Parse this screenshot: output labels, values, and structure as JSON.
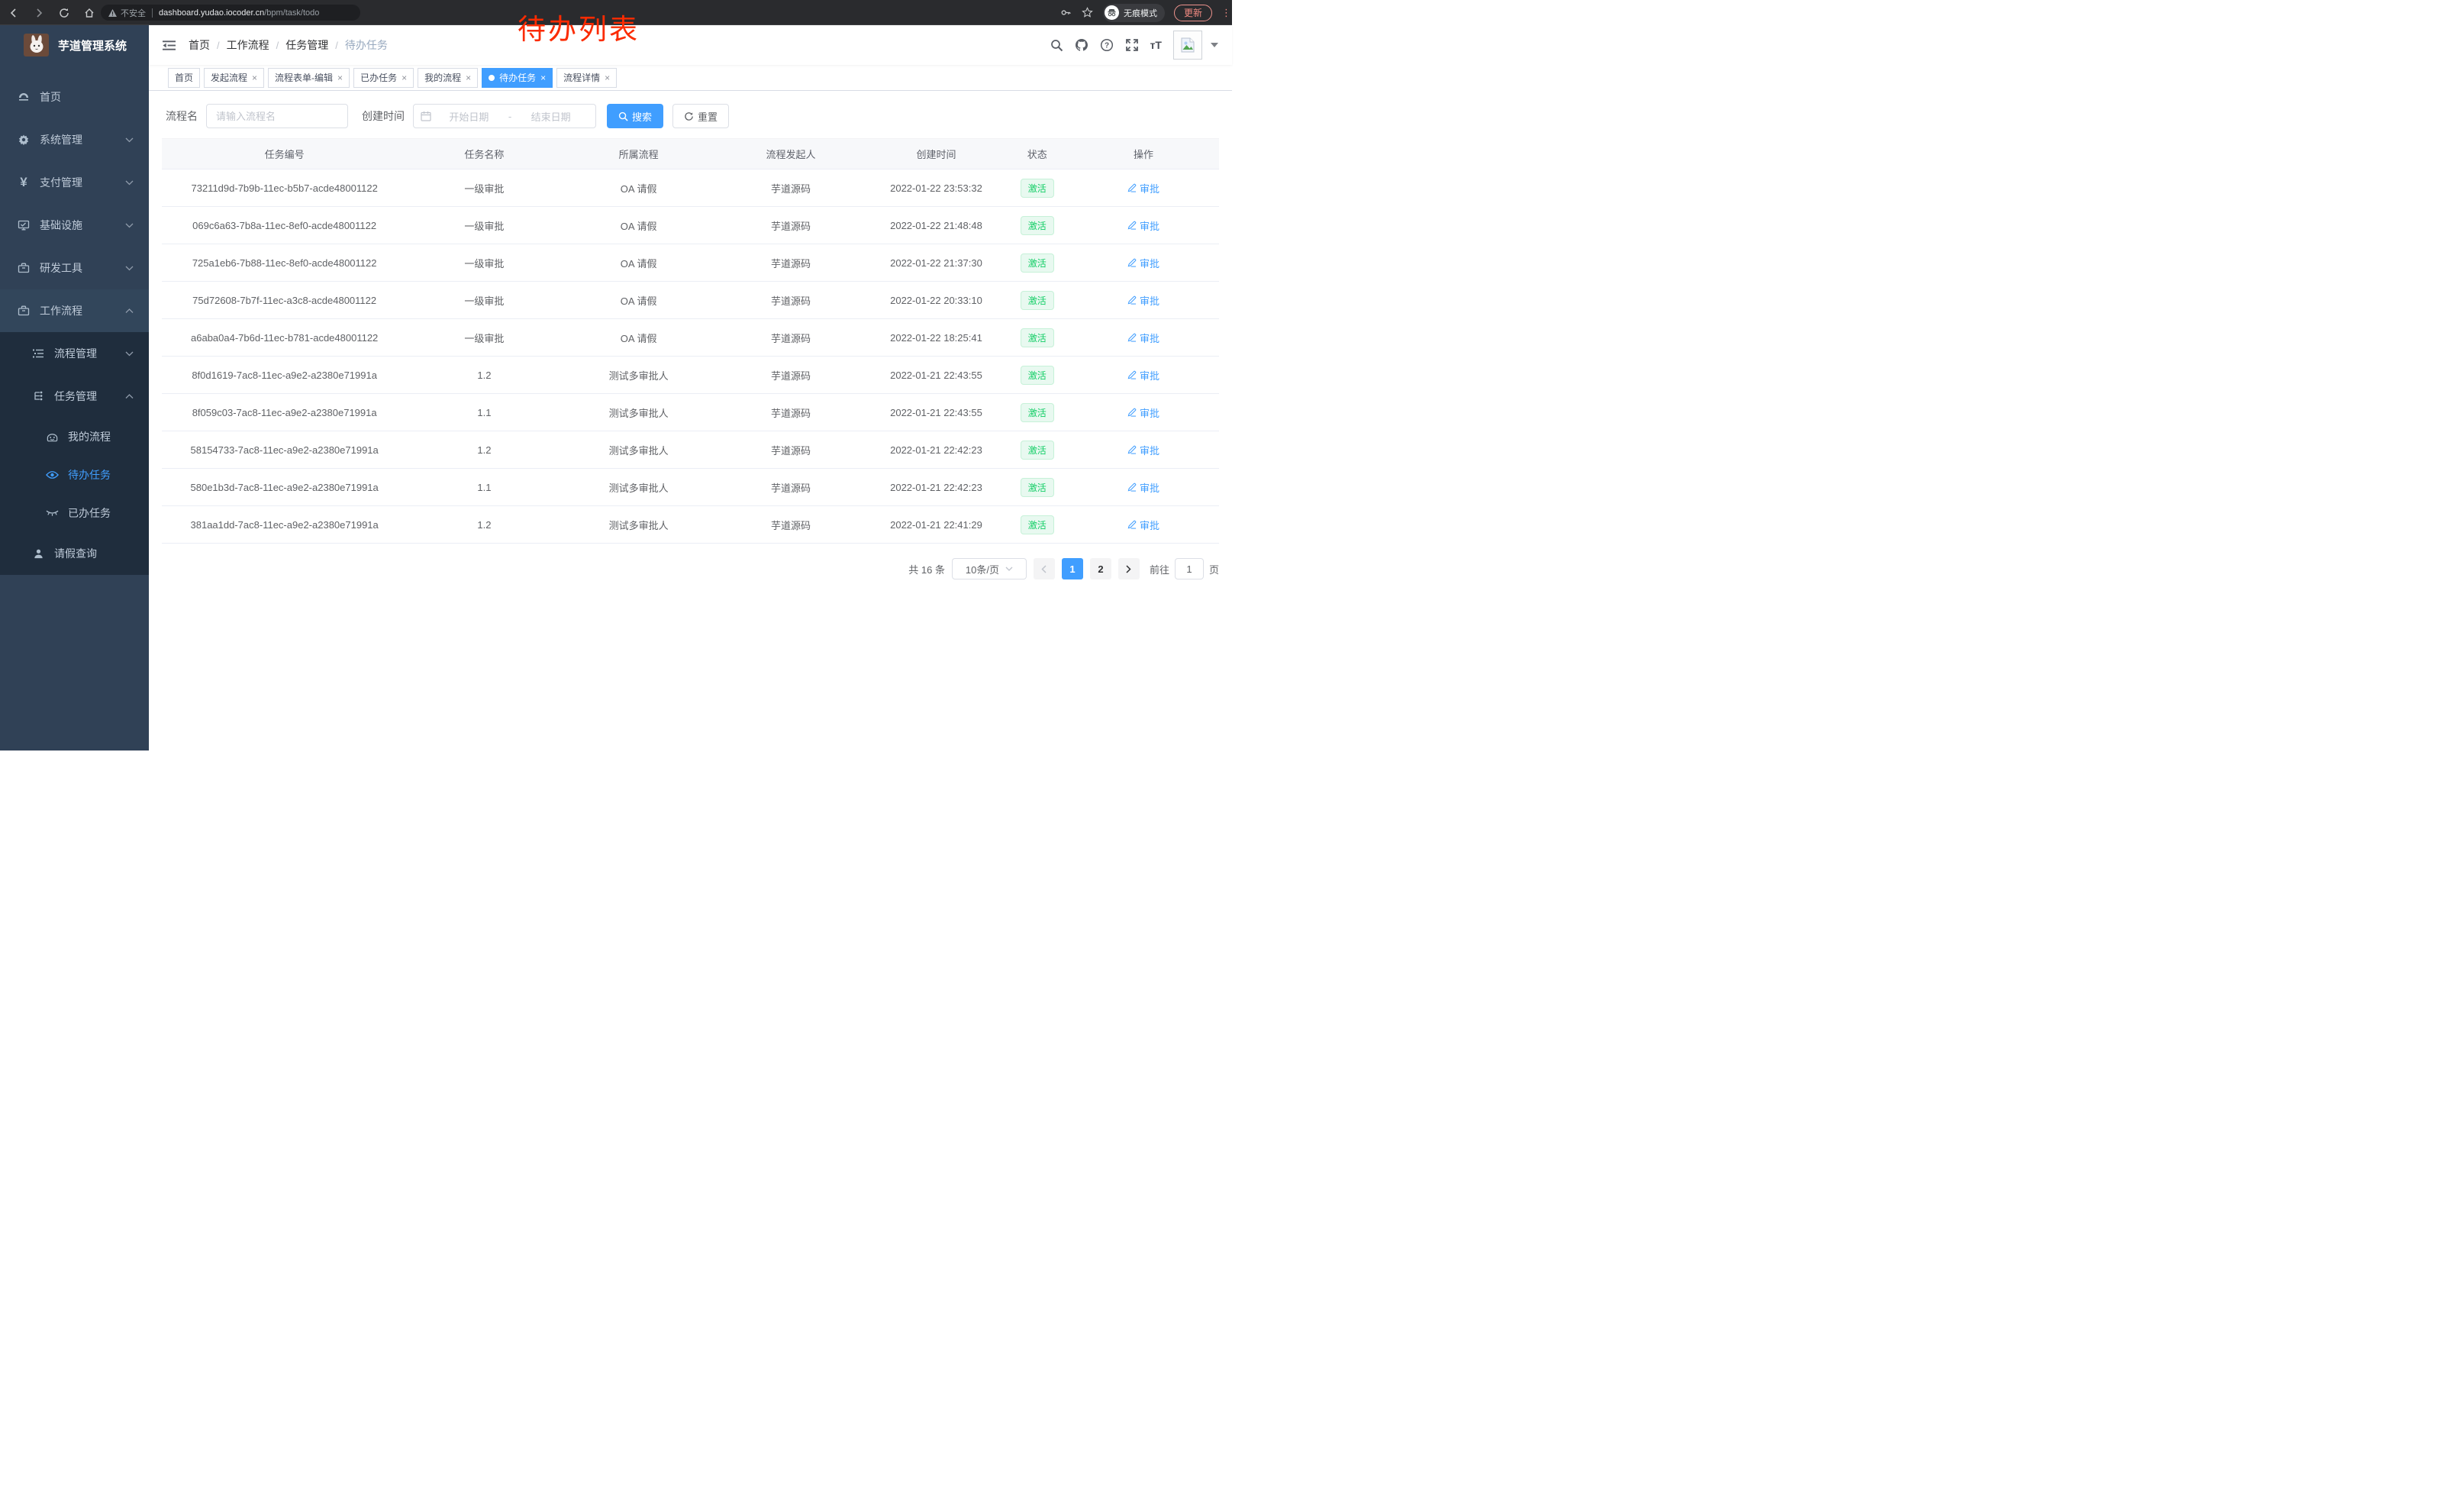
{
  "browser": {
    "security_label": "不安全",
    "url_host": "dashboard.yudao.iocoder.cn",
    "url_path": "/bpm/task/todo",
    "incognito_label": "无痕模式",
    "update_label": "更新"
  },
  "annotation": {
    "text": "待办列表",
    "color": "#fb2b01"
  },
  "sidebar": {
    "app_title": "芋道管理系统",
    "items": [
      {
        "label": "首页",
        "icon": "dashboard-icon"
      },
      {
        "label": "系统管理",
        "icon": "gear-icon"
      },
      {
        "label": "支付管理",
        "icon": "yen-icon"
      },
      {
        "label": "基础设施",
        "icon": "monitor-icon"
      },
      {
        "label": "研发工具",
        "icon": "toolbox-icon"
      },
      {
        "label": "工作流程",
        "icon": "toolbox-icon"
      }
    ],
    "submenu": {
      "process_mgmt": "流程管理",
      "task_mgmt": "任务管理",
      "my_process": "我的流程",
      "todo_task": "待办任务",
      "done_task": "已办任务",
      "leave_query": "请假查询"
    }
  },
  "header": {
    "breadcrumb": [
      "首页",
      "工作流程",
      "任务管理",
      "待办任务"
    ]
  },
  "tabs": [
    {
      "label": "首页",
      "closable": false,
      "active": false
    },
    {
      "label": "发起流程",
      "closable": true,
      "active": false
    },
    {
      "label": "流程表单-编辑",
      "closable": true,
      "active": false
    },
    {
      "label": "已办任务",
      "closable": true,
      "active": false
    },
    {
      "label": "我的流程",
      "closable": true,
      "active": false
    },
    {
      "label": "待办任务",
      "closable": true,
      "active": true
    },
    {
      "label": "流程详情",
      "closable": true,
      "active": false
    }
  ],
  "filters": {
    "name_label": "流程名",
    "name_placeholder": "请输入流程名",
    "time_label": "创建时间",
    "start_placeholder": "开始日期",
    "range_separator": "-",
    "end_placeholder": "结束日期",
    "search_label": "搜索",
    "reset_label": "重置"
  },
  "table": {
    "columns": [
      "任务编号",
      "任务名称",
      "所属流程",
      "流程发起人",
      "创建时间",
      "状态",
      "操作"
    ],
    "rows": [
      {
        "id": "73211d9d-7b9b-11ec-b5b7-acde48001122",
        "name": "一级审批",
        "process": "OA 请假",
        "starter": "芋道源码",
        "created": "2022-01-22 23:53:32",
        "status": "激活",
        "action": "审批"
      },
      {
        "id": "069c6a63-7b8a-11ec-8ef0-acde48001122",
        "name": "一级审批",
        "process": "OA 请假",
        "starter": "芋道源码",
        "created": "2022-01-22 21:48:48",
        "status": "激活",
        "action": "审批"
      },
      {
        "id": "725a1eb6-7b88-11ec-8ef0-acde48001122",
        "name": "一级审批",
        "process": "OA 请假",
        "starter": "芋道源码",
        "created": "2022-01-22 21:37:30",
        "status": "激活",
        "action": "审批"
      },
      {
        "id": "75d72608-7b7f-11ec-a3c8-acde48001122",
        "name": "一级审批",
        "process": "OA 请假",
        "starter": "芋道源码",
        "created": "2022-01-22 20:33:10",
        "status": "激活",
        "action": "审批"
      },
      {
        "id": "a6aba0a4-7b6d-11ec-b781-acde48001122",
        "name": "一级审批",
        "process": "OA 请假",
        "starter": "芋道源码",
        "created": "2022-01-22 18:25:41",
        "status": "激活",
        "action": "审批"
      },
      {
        "id": "8f0d1619-7ac8-11ec-a9e2-a2380e71991a",
        "name": "1.2",
        "process": "测试多审批人",
        "starter": "芋道源码",
        "created": "2022-01-21 22:43:55",
        "status": "激活",
        "action": "审批"
      },
      {
        "id": "8f059c03-7ac8-11ec-a9e2-a2380e71991a",
        "name": "1.1",
        "process": "测试多审批人",
        "starter": "芋道源码",
        "created": "2022-01-21 22:43:55",
        "status": "激活",
        "action": "审批"
      },
      {
        "id": "58154733-7ac8-11ec-a9e2-a2380e71991a",
        "name": "1.2",
        "process": "测试多审批人",
        "starter": "芋道源码",
        "created": "2022-01-21 22:42:23",
        "status": "激活",
        "action": "审批"
      },
      {
        "id": "580e1b3d-7ac8-11ec-a9e2-a2380e71991a",
        "name": "1.1",
        "process": "测试多审批人",
        "starter": "芋道源码",
        "created": "2022-01-21 22:42:23",
        "status": "激活",
        "action": "审批"
      },
      {
        "id": "381aa1dd-7ac8-11ec-a9e2-a2380e71991a",
        "name": "1.2",
        "process": "测试多审批人",
        "starter": "芋道源码",
        "created": "2022-01-21 22:41:29",
        "status": "激活",
        "action": "审批"
      }
    ]
  },
  "pagination": {
    "total_label": "共 16 条",
    "page_size": "10条/页",
    "pages": [
      "1",
      "2"
    ],
    "active_page": "1",
    "goto_label": "前往",
    "goto_value": "1",
    "page_suffix": "页"
  },
  "colors": {
    "accent": "#409eff",
    "success_text": "#13ce66",
    "success_bg": "#e8f9f0",
    "sidebar_bg": "#304156",
    "submenu_bg": "#1f2d3d",
    "annotation_red": "#fb2b01"
  }
}
